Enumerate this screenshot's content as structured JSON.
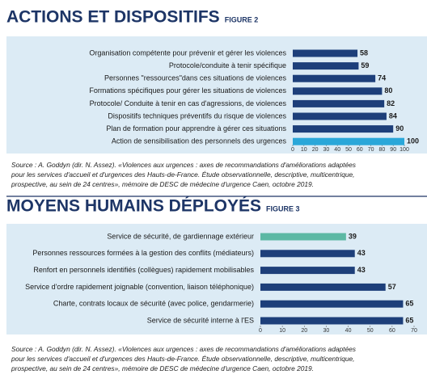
{
  "chart_data": [
    {
      "type": "bar",
      "orientation": "horizontal",
      "title": "ACTIONS ET DISPOSITIFS",
      "figure": "FIGURE 2",
      "categories": [
        "Organisation  compétente pour prévenir et gérer les violences",
        "Protocole/conduite à tenir spécifique",
        "Personnes \"ressources\"dans ces situations de violences",
        "Formations spécifiques pour gérer les situations de  violences",
        "Protocole/ Conduite à tenir en cas d'agressions, de violences",
        "Dispositifs techniques préventifs du risque de violences",
        "Plan de formation pour apprendre à gérer ces situations",
        "Action de sensibilisation des personnels des urgences"
      ],
      "values": [
        58,
        59,
        74,
        80,
        82,
        84,
        90,
        100
      ],
      "colors": [
        "#1d3f7a",
        "#1d3f7a",
        "#1d3f7a",
        "#1d3f7a",
        "#1d3f7a",
        "#1d3f7a",
        "#1d3f7a",
        "#2aa7d9"
      ],
      "xlim": [
        0,
        100
      ],
      "xticks": [
        0,
        10,
        20,
        30,
        40,
        50,
        60,
        70,
        80,
        90,
        100
      ],
      "source": [
        "Source : A. Goddyn (dir. N. Assez). «Violences aux urgences : axes de recommandations d'améliorations adaptées",
        "pour les services d'accueil et d'urgences des Hauts-de-France. Étude observationnelle, descriptive, multicentrique,",
        "prospective, au sein de 24 centres», mémoire de DESC de médecine d'urgence Caen, octobre 2019."
      ]
    },
    {
      "type": "bar",
      "orientation": "horizontal",
      "title": "MOYENS HUMAINS DÉPLOYÉS",
      "figure": "FIGURE 3",
      "categories": [
        "Service de sécurité, de gardiennage extérieur",
        "Personnes ressources formées à la gestion des conflits (médiateurs)",
        "Renfort en personnels identifiés (collègues) rapidement  mobilisables",
        "Service d'ordre rapidement  joignable (convention, liaison téléphonique)",
        "Charte, contrats locaux de sécurité (avec police, gendarmerie)",
        "Service de sécurité interne à l'ES"
      ],
      "values": [
        39,
        43,
        43,
        57,
        65,
        65
      ],
      "colors": [
        "#5cb8a4",
        "#1d3f7a",
        "#1d3f7a",
        "#1d3f7a",
        "#1d3f7a",
        "#1d3f7a"
      ],
      "xlim": [
        0,
        70
      ],
      "xticks": [
        0,
        10,
        20,
        30,
        40,
        50,
        60,
        70
      ],
      "source": [
        "Source : A. Goddyn (dir. N. Assez). «Violences aux urgences : axes de recommandations d'améliorations adaptées",
        "pour les services d'accueil et d'urgences des Hauts-de-France. Étude observationnelle, descriptive, multicentrique,",
        "prospective, au sein de 24 centres», mémoire de DESC de médecine d'urgence Caen, octobre 2019."
      ]
    }
  ]
}
